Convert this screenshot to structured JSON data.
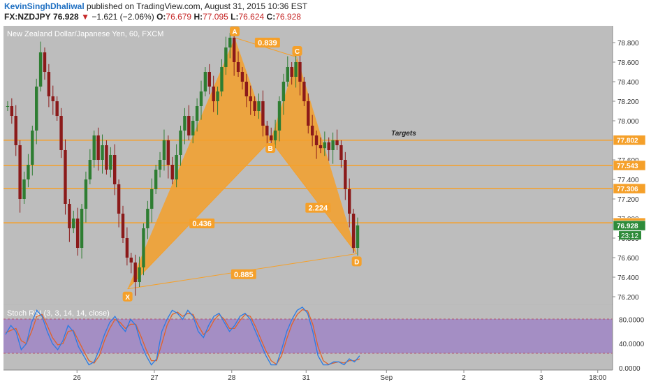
{
  "header": {
    "author": "KevinSinghDhaliwal",
    "published": "published on TradingView.com, August 31, 2015 10:36 EST",
    "symbol": "FX:NZDJPY",
    "last": "76.928",
    "change_arrow": "▼",
    "change": "−1.621 (−2.06%)",
    "o_label": "O:",
    "o": "76.679",
    "h_label": "H:",
    "h": "77.095",
    "l_label": "L:",
    "l": "76.624",
    "c_label": "C:",
    "c": "76.928"
  },
  "colors": {
    "up": "#2e7d32",
    "down": "#8b1a1a",
    "pattern": "#f5a02a",
    "target_line": "#f5a02a",
    "rsi_k": "#2a7be4",
    "rsi_d": "#e0622a",
    "tag_orange": "#f5a02a",
    "tag_green": "#2e8b3a"
  },
  "chart_data": {
    "type": "candlestick",
    "title": "New Zealand Dollar/Japanese Yen, 60, FXCM",
    "targets_label": "Targets",
    "ylim": [
      76.15,
      78.95
    ],
    "y_ticks": [
      "78.800",
      "78.600",
      "78.400",
      "78.200",
      "78.000",
      "77.800",
      "77.600",
      "77.400",
      "77.200",
      "77.000",
      "76.800",
      "76.600",
      "76.400",
      "76.200"
    ],
    "x_ticks": [
      {
        "label": "26",
        "t": 0.12
      },
      {
        "label": "27",
        "t": 0.25
      },
      {
        "label": "28",
        "t": 0.38
      },
      {
        "label": "31",
        "t": 0.505
      },
      {
        "label": "Sep",
        "t": 0.64
      },
      {
        "label": "2",
        "t": 0.77
      },
      {
        "label": "3",
        "t": 0.9
      },
      {
        "label": "18:00",
        "t": 0.995
      }
    ],
    "target_levels": [
      {
        "label": "77.802",
        "value": 77.802
      },
      {
        "label": "77.543",
        "value": 77.543
      },
      {
        "label": "77.306",
        "value": 77.306
      },
      {
        "label": "76.956",
        "value": 76.956
      }
    ],
    "last_price": {
      "label": "76.928",
      "value": 76.928,
      "countdown": "23:12"
    },
    "pattern": {
      "name_points": [
        {
          "label": "X",
          "t": 0.205,
          "value": 76.28
        },
        {
          "label": "A",
          "t": 0.385,
          "value": 78.85
        },
        {
          "label": "B",
          "t": 0.445,
          "value": 77.8
        },
        {
          "label": "C",
          "t": 0.49,
          "value": 78.65
        },
        {
          "label": "D",
          "t": 0.59,
          "value": 76.64
        }
      ],
      "ratios": [
        {
          "label": "0.839",
          "t": 0.44,
          "value": 78.8
        },
        {
          "label": "0.436",
          "t": 0.33,
          "value": 76.95
        },
        {
          "label": "2.224",
          "t": 0.525,
          "value": 77.11
        },
        {
          "label": "0.885",
          "t": 0.4,
          "value": 76.43
        }
      ]
    },
    "closes": [
      78.15,
      78.05,
      77.75,
      77.2,
      77.4,
      77.55,
      77.9,
      78.35,
      78.7,
      78.5,
      78.25,
      78.2,
      78.05,
      77.7,
      77.15,
      76.9,
      77.0,
      76.7,
      77.1,
      77.4,
      77.6,
      77.85,
      77.6,
      77.75,
      77.5,
      77.65,
      77.35,
      77.05,
      76.8,
      76.6,
      76.55,
      76.35,
      76.5,
      76.9,
      77.1,
      77.3,
      77.5,
      77.6,
      77.8,
      77.55,
      77.4,
      77.65,
      77.9,
      78.05,
      77.85,
      78.0,
      78.15,
      78.3,
      78.5,
      78.35,
      78.2,
      78.3,
      78.55,
      78.75,
      78.85,
      78.6,
      78.5,
      78.4,
      78.25,
      78.2,
      78.1,
      78.2,
      77.95,
      77.85,
      77.8,
      77.9,
      78.2,
      78.4,
      78.55,
      78.45,
      78.6,
      78.4,
      78.2,
      77.95,
      77.85,
      77.75,
      77.72,
      77.78,
      77.7,
      77.8,
      77.75,
      77.6,
      77.3,
      77.05,
      76.7,
      76.93
    ],
    "indicator": {
      "title": "Stoch RSI (3, 3, 14, 14, close)",
      "ylim": [
        0,
        100
      ],
      "ticks": [
        "80.0000",
        "40.0000",
        "0.0000"
      ],
      "k": [
        55,
        70,
        60,
        30,
        40,
        75,
        95,
        85,
        60,
        40,
        30,
        45,
        70,
        60,
        35,
        20,
        5,
        10,
        30,
        55,
        75,
        85,
        70,
        60,
        80,
        70,
        40,
        20,
        5,
        15,
        60,
        80,
        95,
        90,
        80,
        95,
        85,
        60,
        50,
        70,
        85,
        90,
        75,
        60,
        70,
        85,
        90,
        80,
        60,
        40,
        20,
        5,
        5,
        30,
        60,
        80,
        95,
        100,
        90,
        60,
        20,
        5,
        5,
        10,
        10,
        5,
        15,
        10,
        20
      ],
      "d": [
        58,
        62,
        65,
        45,
        40,
        60,
        85,
        88,
        70,
        50,
        38,
        40,
        60,
        62,
        45,
        28,
        12,
        8,
        20,
        45,
        65,
        80,
        75,
        65,
        72,
        72,
        52,
        30,
        12,
        12,
        40,
        70,
        88,
        92,
        85,
        90,
        88,
        70,
        55,
        62,
        78,
        88,
        80,
        65,
        65,
        78,
        88,
        85,
        68,
        48,
        28,
        12,
        6,
        20,
        48,
        72,
        88,
        96,
        94,
        72,
        35,
        12,
        6,
        8,
        10,
        8,
        12,
        12,
        15
      ]
    }
  }
}
